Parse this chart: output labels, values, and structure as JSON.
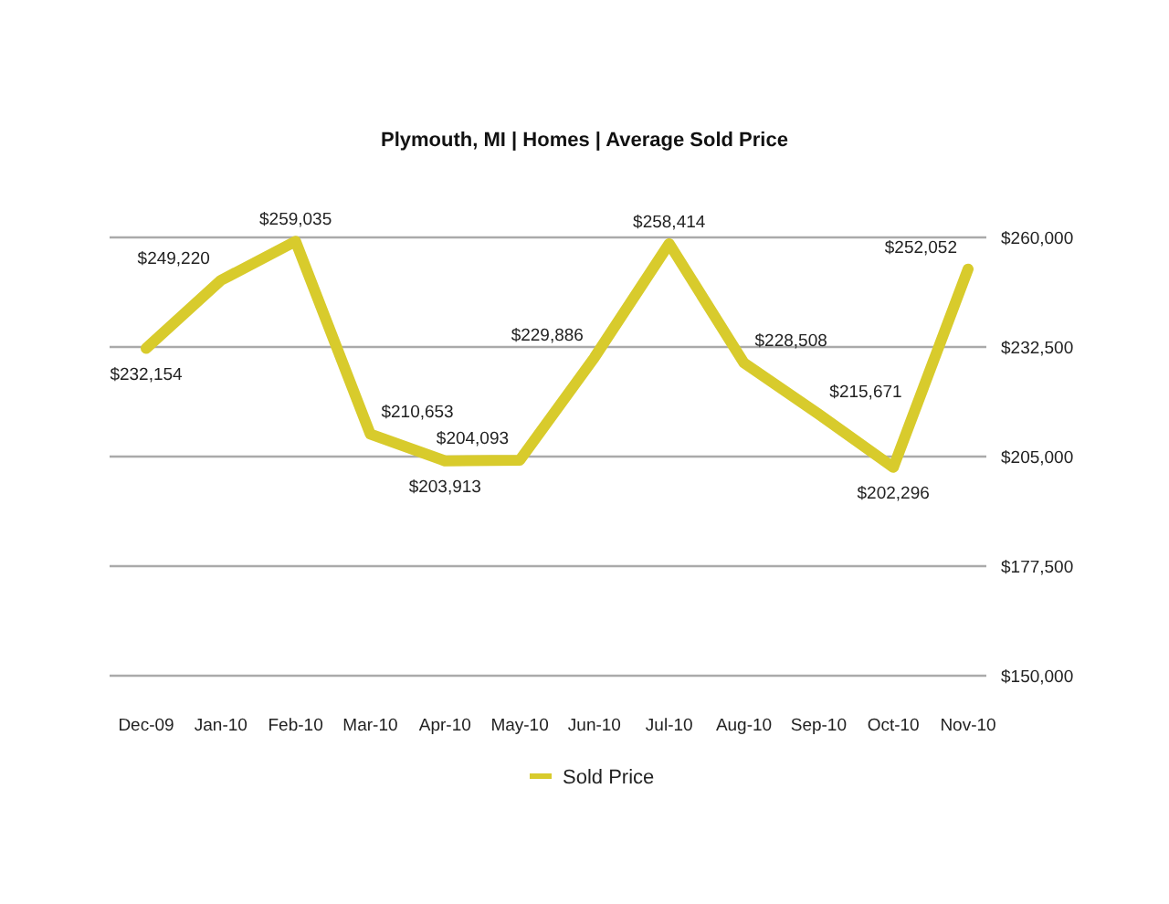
{
  "chart_data": {
    "type": "line",
    "title": "Plymouth, MI | Homes | Average Sold Price",
    "categories": [
      "Dec-09",
      "Jan-10",
      "Feb-10",
      "Mar-10",
      "Apr-10",
      "May-10",
      "Jun-10",
      "Jul-10",
      "Aug-10",
      "Sep-10",
      "Oct-10",
      "Nov-10"
    ],
    "series": [
      {
        "name": "Sold Price",
        "color": "#d8cb2c",
        "values": [
          232154,
          249220,
          259035,
          210653,
          203913,
          204093,
          229886,
          258414,
          228508,
          215671,
          202296,
          252052
        ],
        "value_labels": [
          "$232,154",
          "$249,220",
          "$259,035",
          "$210,653",
          "$203,913",
          "$204,093",
          "$229,886",
          "$258,414",
          "$228,508",
          "$215,671",
          "$202,296",
          "$252,052"
        ]
      }
    ],
    "ylim": [
      150000,
      260000
    ],
    "yticks": [
      {
        "value": 150000,
        "label": "$150,000"
      },
      {
        "value": 177500,
        "label": "$177,500"
      },
      {
        "value": 205000,
        "label": "$205,000"
      },
      {
        "value": 232500,
        "label": "$232,500"
      },
      {
        "value": 260000,
        "label": "$260,000"
      }
    ],
    "grid": "y",
    "legend": "bottom"
  }
}
